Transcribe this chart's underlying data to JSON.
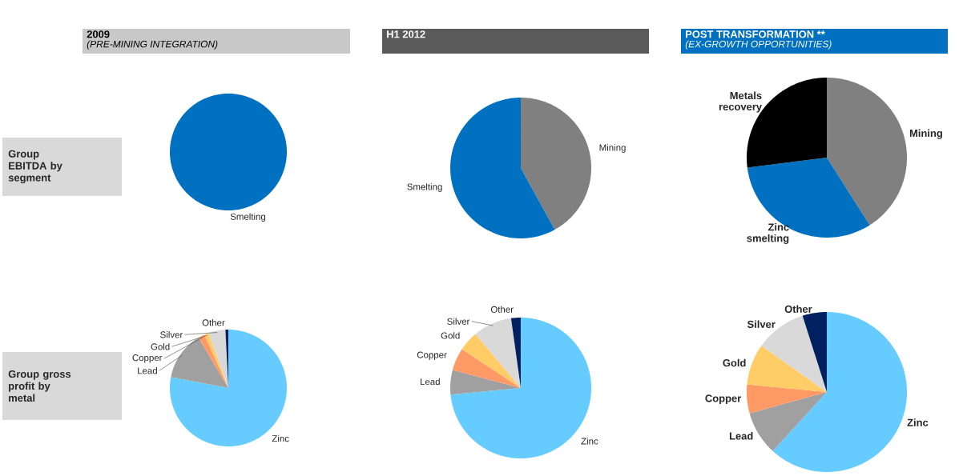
{
  "chart_data": [
    {
      "type": "other",
      "title": "Group EBITDA by segment"
    },
    {
      "type": "pie",
      "title": "2009",
      "subtitle": "(PRE-MINING INTEGRATION)",
      "categories": [
        "Smelting"
      ],
      "values": [
        100
      ],
      "colors": [
        "#0070c0"
      ]
    },
    {
      "type": "pie",
      "title": "H1 2012",
      "categories": [
        "Mining",
        "Smelting"
      ],
      "values": [
        42,
        58
      ],
      "colors": [
        "#808080",
        "#0070c0"
      ]
    },
    {
      "type": "pie",
      "title": "POST TRANSFORMATION **",
      "subtitle": "(EX-GROWTH OPPORTUNITIES)",
      "categories": [
        "Mining",
        "Zinc smelting",
        "Metals recovery"
      ],
      "values": [
        41,
        32,
        27
      ],
      "colors": [
        "#808080",
        "#0070c0",
        "#000000"
      ]
    },
    {
      "type": "other",
      "title": "Group gross profit by metal"
    },
    {
      "type": "pie",
      "categories": [
        "Zinc",
        "Lead",
        "Copper",
        "Gold",
        "Silver",
        "Other"
      ],
      "values": [
        78,
        13.5,
        1.8,
        1.2,
        4.7,
        0.8
      ],
      "colors": [
        "#66ccff",
        "#a0a0a0",
        "#ff9966",
        "#ffcc66",
        "#d9d9d9",
        "#002060"
      ]
    },
    {
      "type": "pie",
      "categories": [
        "Zinc",
        "Lead",
        "Copper",
        "Gold",
        "Silver",
        "Other"
      ],
      "values": [
        73.5,
        5.6,
        5.2,
        4.6,
        8.9,
        2.2
      ],
      "colors": [
        "#66ccff",
        "#a0a0a0",
        "#ff9966",
        "#ffcc66",
        "#d9d9d9",
        "#002060"
      ]
    },
    {
      "type": "pie",
      "categories": [
        "Zinc",
        "Lead",
        "Copper",
        "Gold",
        "Silver",
        "Other"
      ],
      "values": [
        61.8,
        8.9,
        5.8,
        8.3,
        10.3,
        4.9
      ],
      "colors": [
        "#66ccff",
        "#a0a0a0",
        "#ff9966",
        "#ffcc66",
        "#d9d9d9",
        "#002060"
      ]
    }
  ]
}
